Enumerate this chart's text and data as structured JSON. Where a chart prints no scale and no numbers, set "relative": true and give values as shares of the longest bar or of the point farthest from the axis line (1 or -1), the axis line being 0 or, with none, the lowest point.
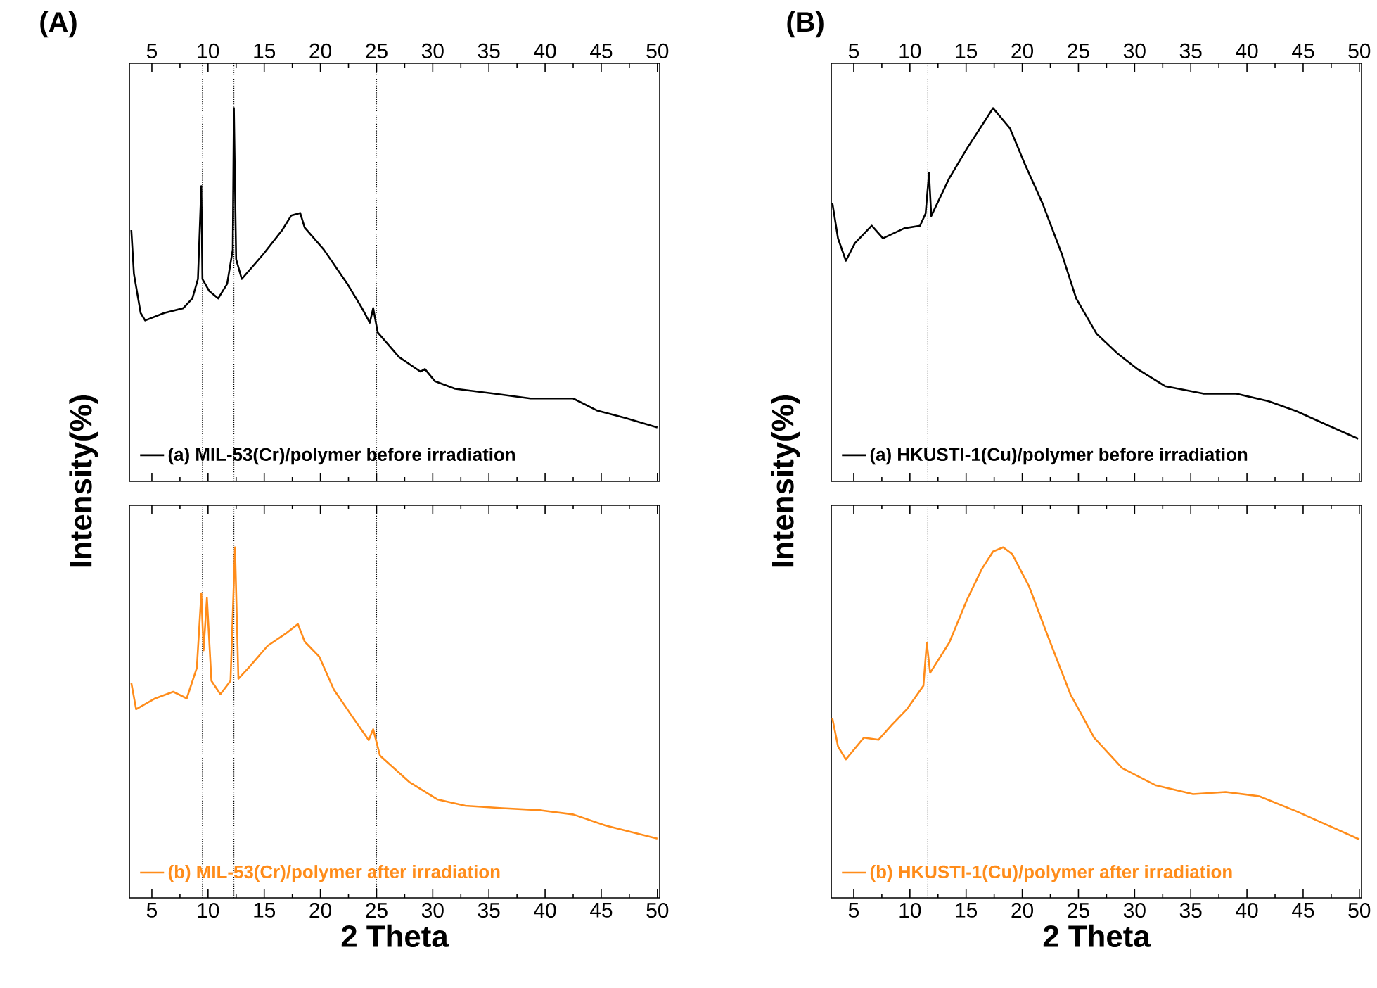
{
  "chart_data": [
    {
      "type": "line",
      "title": "(A)",
      "ylabel": "Intensity(%)",
      "relative": true,
      "xlim": [
        3,
        50.2
      ],
      "xticks": [
        5,
        10,
        15,
        20,
        25,
        30,
        35,
        40,
        45,
        50
      ],
      "tick_labels": "x",
      "legend": "bottom left",
      "x": [
        3.17,
        3.4,
        4.0,
        4.4,
        6.1,
        7.8,
        8.6,
        9.1,
        9.4,
        9.5,
        10.1,
        10.9,
        11.7,
        12.2,
        12.3,
        12.5,
        13.0,
        14.9,
        16.6,
        17.4,
        18.2,
        18.6,
        20.3,
        22.4,
        23.7,
        24.4,
        24.7,
        25.1,
        27.0,
        28.9,
        29.3,
        30.2,
        32.0,
        35.4,
        38.7,
        42.5,
        44.6,
        47.1,
        50.0
      ],
      "series": [
        {
          "name": "(a) MIL-53(Cr)/polymer before irradiation",
          "color": "#000000",
          "values": [
            0.673,
            0.556,
            0.451,
            0.431,
            0.451,
            0.464,
            0.49,
            0.542,
            0.791,
            0.542,
            0.51,
            0.49,
            0.529,
            0.621,
            1.0,
            0.595,
            0.542,
            0.608,
            0.673,
            0.712,
            0.719,
            0.68,
            0.621,
            0.529,
            0.464,
            0.425,
            0.464,
            0.399,
            0.333,
            0.294,
            0.301,
            0.268,
            0.248,
            0.235,
            0.222,
            0.222,
            0.19,
            0.17,
            0.144
          ]
        }
      ],
      "ref_lines": [
        {
          "axis": "x",
          "value": 9.5,
          "color": "#000000",
          "line_style": "dotted"
        },
        {
          "axis": "x",
          "value": 12.3,
          "color": "#000000",
          "line_style": "dotted"
        },
        {
          "axis": "x",
          "value": 25,
          "color": "#000000",
          "line_style": "dotted"
        }
      ]
    },
    {
      "type": "line",
      "xlabel": "2 Theta",
      "relative": true,
      "xlim": [
        3,
        50.2
      ],
      "xticks": [
        5,
        10,
        15,
        20,
        25,
        30,
        35,
        40,
        45,
        50
      ],
      "tick_labels": "x",
      "legend": "bottom left",
      "x": [
        3.17,
        3.6,
        5.3,
        6.9,
        8.1,
        9.0,
        9.4,
        9.6,
        9.9,
        10.3,
        11.1,
        12.0,
        12.4,
        12.7,
        13.6,
        15.3,
        17.0,
        18.0,
        18.6,
        19.9,
        21.2,
        22.8,
        24.3,
        24.7,
        25.3,
        27.9,
        30.4,
        32.9,
        36.2,
        39.6,
        42.5,
        45.4,
        50.0
      ],
      "series": [
        {
          "name": "(b) MIL-53(Cr)/polymer after irradiation",
          "color": "#ff8c1a",
          "values": [
            0.613,
            0.538,
            0.569,
            0.588,
            0.569,
            0.656,
            0.869,
            0.706,
            0.856,
            0.619,
            0.581,
            0.619,
            1.0,
            0.625,
            0.656,
            0.719,
            0.756,
            0.781,
            0.731,
            0.688,
            0.594,
            0.519,
            0.45,
            0.481,
            0.406,
            0.331,
            0.281,
            0.263,
            0.256,
            0.25,
            0.238,
            0.206,
            0.169
          ]
        }
      ],
      "ref_lines": [
        {
          "axis": "x",
          "value": 9.5,
          "color": "#000000",
          "line_style": "dotted"
        },
        {
          "axis": "x",
          "value": 12.3,
          "color": "#000000",
          "line_style": "dotted"
        },
        {
          "axis": "x",
          "value": 25,
          "color": "#000000",
          "line_style": "dotted"
        }
      ]
    },
    {
      "type": "line",
      "title": "(B)",
      "ylabel": "Intensity(%)",
      "relative": true,
      "xlim": [
        3,
        50.2
      ],
      "xticks": [
        5,
        10,
        15,
        20,
        25,
        30,
        35,
        40,
        45,
        50
      ],
      "tick_labels": "x",
      "legend": "bottom left",
      "x": [
        3.1,
        3.6,
        4.3,
        5.1,
        6.6,
        7.6,
        9.5,
        10.9,
        11.4,
        11.7,
        11.9,
        13.5,
        15.1,
        16.4,
        17.4,
        18.9,
        20.2,
        21.8,
        23.5,
        24.8,
        26.6,
        28.5,
        30.2,
        32.7,
        36.1,
        39.0,
        41.9,
        44.4,
        46.9,
        49.9
      ],
      "series": [
        {
          "name": "(a) HKUSTI-1(Cu)/polymer before irradiation",
          "color": "#000000",
          "values": [
            0.745,
            0.651,
            0.591,
            0.638,
            0.685,
            0.651,
            0.678,
            0.685,
            0.718,
            0.826,
            0.711,
            0.812,
            0.893,
            0.953,
            1.0,
            0.946,
            0.852,
            0.745,
            0.611,
            0.49,
            0.396,
            0.342,
            0.302,
            0.255,
            0.235,
            0.235,
            0.215,
            0.188,
            0.154,
            0.114
          ]
        }
      ],
      "ref_lines": [
        {
          "axis": "x",
          "value": 11.6,
          "color": "#000000",
          "line_style": "dotted"
        }
      ]
    },
    {
      "type": "line",
      "xlabel": "2 Theta",
      "relative": true,
      "xlim": [
        3,
        50.2
      ],
      "xticks": [
        5,
        10,
        15,
        20,
        25,
        30,
        35,
        40,
        45,
        50
      ],
      "tick_labels": "x",
      "legend": "bottom left",
      "x": [
        3.1,
        3.6,
        4.3,
        5.9,
        7.2,
        8.4,
        9.7,
        11.2,
        11.5,
        11.8,
        13.5,
        15.1,
        16.4,
        17.4,
        18.3,
        19.1,
        20.6,
        22.2,
        24.3,
        26.4,
        28.9,
        31.9,
        35.2,
        38.1,
        41.1,
        44.4,
        47.0,
        50.0
      ],
      "series": [
        {
          "name": "(b) HKUSTI-1(Cu)/polymer after irradiation",
          "color": "#ff8c1a",
          "values": [
            0.512,
            0.432,
            0.395,
            0.457,
            0.451,
            0.494,
            0.537,
            0.605,
            0.728,
            0.642,
            0.728,
            0.852,
            0.938,
            0.988,
            1.0,
            0.981,
            0.889,
            0.753,
            0.58,
            0.457,
            0.37,
            0.321,
            0.296,
            0.302,
            0.29,
            0.247,
            0.21,
            0.167
          ]
        }
      ],
      "ref_lines": [
        {
          "axis": "x",
          "value": 11.6,
          "color": "#000000",
          "line_style": "dotted"
        }
      ]
    }
  ]
}
